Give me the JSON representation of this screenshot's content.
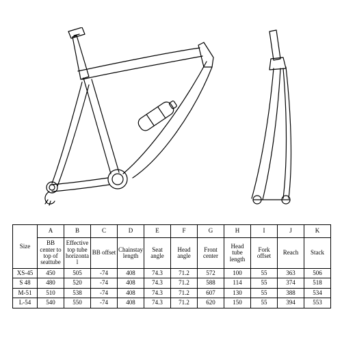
{
  "diagram": {
    "stroke_color": "#000000",
    "stroke_width": 1.2,
    "bg": "#ffffff"
  },
  "table": {
    "type": "table",
    "border_color": "#000000",
    "font_family": "serif",
    "header_fontsize_pt": 7,
    "cell_fontsize_pt": 7,
    "size_label": "Size",
    "col_letters": [
      "A",
      "B",
      "C",
      "D",
      "E",
      "F",
      "G",
      "H",
      "I",
      "J",
      "K"
    ],
    "col_desc": [
      "BB center to top of seattube",
      "Effective top tube horizontal",
      "BB offset",
      "Chainstay length",
      "Seat angle",
      "Head angle",
      "Front center",
      "Head tube length",
      "Fork offset",
      "Reach",
      "Stack"
    ],
    "rows": [
      {
        "size": "XS-45",
        "v": [
          450,
          505,
          -74,
          408,
          74.3,
          71.2,
          572,
          100,
          55,
          363,
          506
        ]
      },
      {
        "size": "S 48",
        "v": [
          480,
          520,
          -74,
          408,
          74.3,
          71.2,
          588,
          114,
          55,
          374,
          518
        ]
      },
      {
        "size": "M-51",
        "v": [
          510,
          538,
          -74,
          408,
          74.3,
          71.2,
          607,
          130,
          55,
          388,
          534
        ]
      },
      {
        "size": "L-54",
        "v": [
          540,
          550,
          -74,
          408,
          74.3,
          71.2,
          620,
          150,
          55,
          394,
          553
        ]
      }
    ]
  }
}
